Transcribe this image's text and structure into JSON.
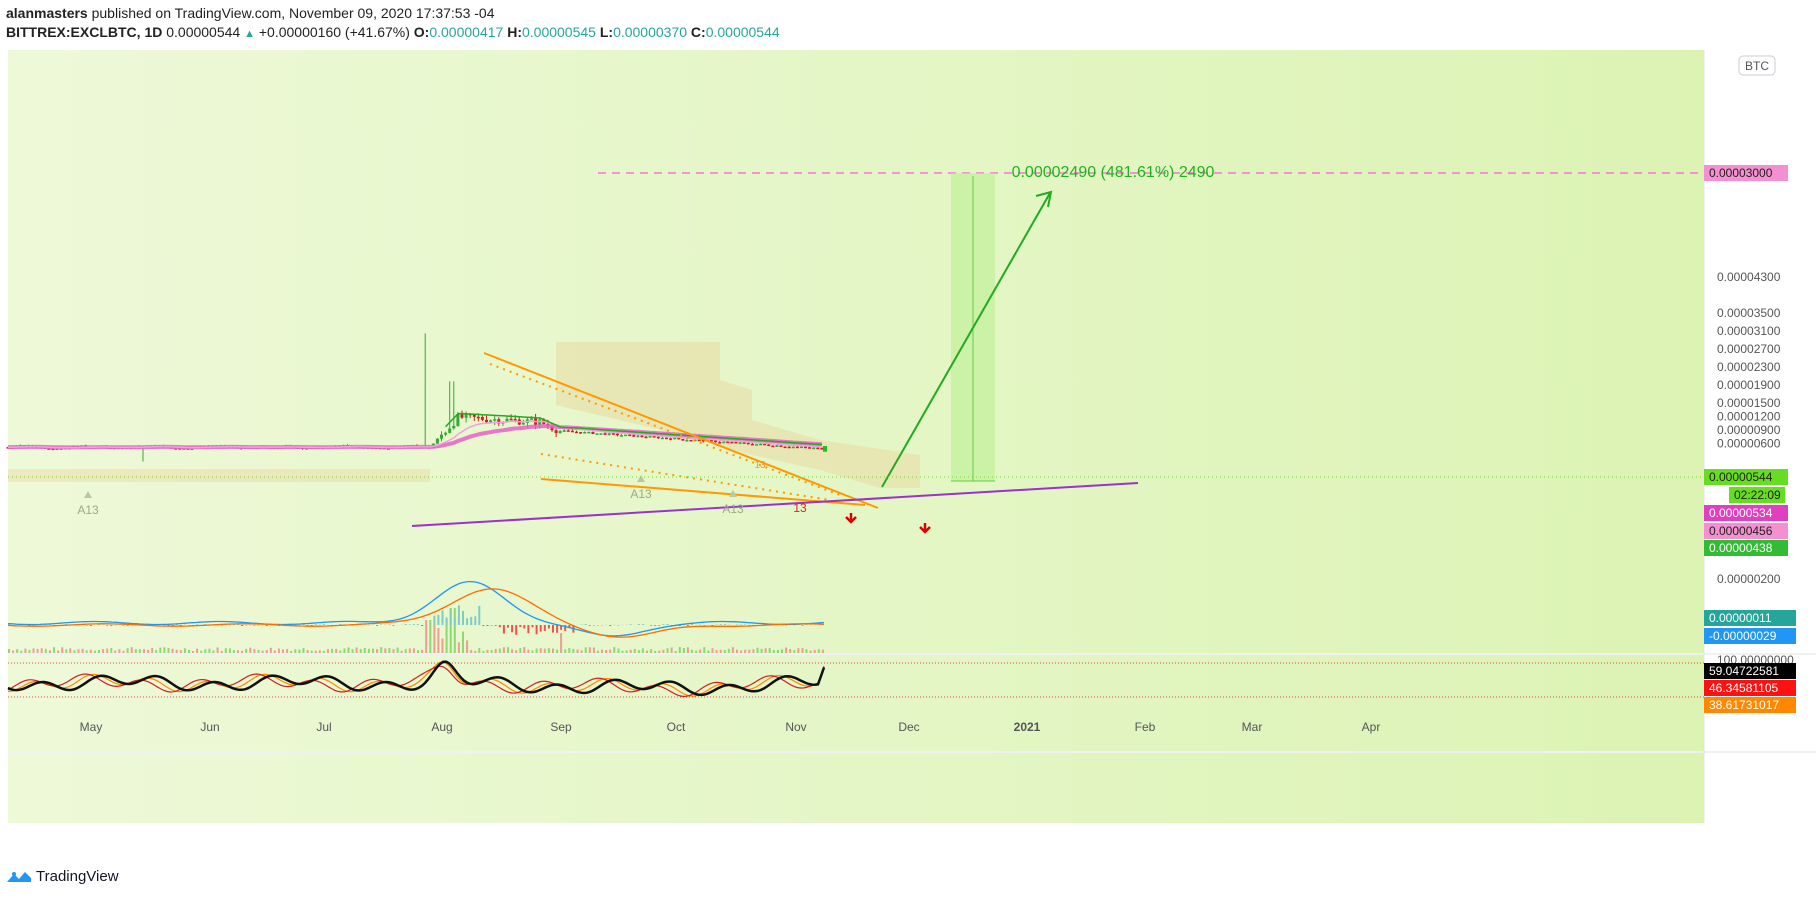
{
  "header": {
    "author": "alanmasters",
    "published_text": "published on TradingView.com, November 09, 2020 17:37:53 -04",
    "symbol": "BITTREX:EXCLBTC, 1D",
    "last": "0.00000544",
    "change": "+0.00000160 (+41.67%)",
    "o_label": "O:",
    "o": "0.00000417",
    "h_label": "H:",
    "h": "0.00000545",
    "l_label": "L:",
    "l": "0.00000370",
    "c_label": "C:",
    "c": "0.00000544"
  },
  "currency_badge": "BTC",
  "measure_label": "0.00002490 (481.61%) 2490",
  "price_axis": {
    "ticks": [
      "0.00004300",
      "0.00003500",
      "0.00003100",
      "0.00002700",
      "0.00002300",
      "0.00001900",
      "0.00001500",
      "0.00001200",
      "0.00000900",
      "0.00000600",
      "0.00000200"
    ],
    "tick_values": [
      4.3e-05,
      3.5e-05,
      3.1e-05,
      2.7e-05,
      2.3e-05,
      1.9e-05,
      1.5e-05,
      1.2e-05,
      9e-06,
      6e-06,
      2e-06
    ]
  },
  "price_labels": [
    {
      "text": "0.00003000",
      "color": "#f48fd1",
      "text_color": "#222222"
    },
    {
      "text": "0.00000544",
      "color": "#66dd22",
      "text_color": "#222222"
    },
    {
      "text": "02:22:09",
      "color": "#66dd22",
      "text_color": "#222222"
    },
    {
      "text": "0.00000534",
      "color": "#e040c0",
      "text_color": "#ffffff"
    },
    {
      "text": "0.00000456",
      "color": "#f48fd1",
      "text_color": "#222222"
    },
    {
      "text": "0.00000438",
      "color": "#33bb33",
      "text_color": "#ffffff"
    }
  ],
  "macd_labels": [
    {
      "text": "0.00000011",
      "color": "#26a69a",
      "text_color": "#ffffff"
    },
    {
      "text": "-0.00000029",
      "color": "#2196f3",
      "text_color": "#ffffff"
    }
  ],
  "rsi_axis_top": "100.00000000",
  "rsi_labels": [
    {
      "text": "59.04722581",
      "color": "#000000",
      "text_color": "#ffffff"
    },
    {
      "text": "46.34581105",
      "color": "#ff1111",
      "text_color": "#ffffff"
    },
    {
      "text": "38.61731017",
      "color": "#ff8800",
      "text_color": "#ffffff"
    }
  ],
  "time_axis": [
    "May",
    "Jun",
    "Jul",
    "Aug",
    "Sep",
    "Oct",
    "Nov",
    "Dec",
    "2021",
    "Feb",
    "Mar",
    "Apr"
  ],
  "annotations": [
    "A13",
    "A13",
    "A13",
    "13",
    "13"
  ],
  "footer": {
    "brand": "TradingView"
  },
  "chart_data": {
    "type": "line",
    "title": "BITTREX:EXCLBTC, 1D",
    "x": [
      "May",
      "Jun",
      "Jul",
      "Aug",
      "Sep",
      "Oct",
      "Nov"
    ],
    "series": [
      {
        "values": [
          5.3e-06,
          5.2e-06,
          5.3e-06,
          1.1e-05,
          8e-06,
          6.5e-06,
          5.4e-06
        ]
      }
    ],
    "ylim": [
      2e-07,
      4.3e-06
    ],
    "target": 3e-05,
    "colors": {
      "bg": "#e3f6c4",
      "up": "#33aa33",
      "down": "#cc2222",
      "ema": "#e860c8",
      "wedge": "#ff9900",
      "support": "#9933cc",
      "arrow": "#22aa22",
      "target_line": "#f07ad0"
    }
  }
}
